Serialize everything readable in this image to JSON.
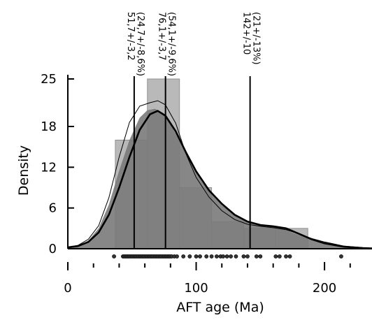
{
  "chart_data": {
    "type": "bar",
    "xlabel": "AFT age (Ma)",
    "ylabel": "Density",
    "xlim": [
      0,
      237
    ],
    "ylim": [
      0,
      25
    ],
    "x_ticks": [
      0,
      100,
      200
    ],
    "y_ticks": [
      0,
      6,
      12,
      18,
      25
    ],
    "histogram": {
      "bin_edges": [
        37,
        62,
        87,
        112,
        137,
        162,
        187
      ],
      "values": [
        16,
        25,
        9,
        4,
        3,
        3
      ]
    },
    "kde_thick": {
      "x": [
        0,
        8,
        16,
        24,
        32,
        40,
        48,
        56,
        64,
        70,
        76,
        84,
        92,
        100,
        110,
        120,
        130,
        140,
        150,
        160,
        170,
        180,
        190,
        200,
        215,
        230,
        237
      ],
      "y": [
        0.2,
        0.4,
        1.0,
        2.4,
        5.0,
        9.0,
        13.5,
        17.5,
        19.8,
        20.3,
        19.6,
        17.3,
        14.2,
        11.4,
        8.6,
        6.6,
        5.0,
        4.0,
        3.5,
        3.3,
        3.0,
        2.2,
        1.4,
        0.8,
        0.3,
        0.1,
        0.05
      ]
    },
    "kde_thin": {
      "x": [
        0,
        8,
        16,
        24,
        32,
        40,
        48,
        56,
        64,
        70,
        76,
        84,
        92,
        100,
        110,
        120,
        130,
        140,
        150,
        160,
        170,
        180,
        190,
        200,
        215,
        230,
        237
      ],
      "y": [
        0.2,
        0.5,
        1.4,
        3.4,
        7.5,
        13.5,
        18.6,
        21.0,
        21.5,
        21.8,
        21.2,
        18.5,
        14.0,
        10.5,
        7.6,
        5.6,
        4.3,
        3.6,
        3.3,
        3.1,
        2.8,
        2.2,
        1.5,
        1.0,
        0.4,
        0.15,
        0.05
      ]
    },
    "kde_fill": {
      "x": [
        0,
        8,
        16,
        24,
        32,
        40,
        48,
        56,
        62,
        68,
        74,
        80,
        88,
        96,
        104,
        112,
        120,
        130,
        140,
        150,
        158,
        166,
        176,
        186,
        196,
        210,
        225,
        237
      ],
      "y": [
        0.2,
        0.4,
        1.2,
        3.0,
        6.5,
        11.5,
        16.0,
        19.3,
        20.4,
        20.6,
        20.0,
        18.3,
        15.6,
        12.6,
        10.0,
        8.0,
        6.4,
        5.0,
        4.1,
        3.6,
        3.4,
        3.0,
        2.3,
        1.6,
        1.0,
        0.5,
        0.15,
        0.05
      ]
    },
    "peaks": [
      {
        "x": 51.7,
        "lines": [
          "51,7+/-3,2",
          "(24,7+/-8,6%)"
        ]
      },
      {
        "x": 76.1,
        "lines": [
          "76,1+/-3,7",
          "(54,1+/-9,6%)"
        ]
      },
      {
        "x": 142,
        "lines": [
          "142+/-10",
          "(21+/-13%)"
        ]
      }
    ],
    "rug": [
      36,
      43,
      44,
      45,
      46,
      47,
      48,
      49,
      50,
      51,
      52,
      53,
      54,
      55,
      56,
      57,
      58,
      59,
      60,
      61,
      62,
      63,
      64,
      65,
      66,
      67,
      68,
      69,
      70,
      71,
      72,
      73,
      74,
      75,
      76,
      77,
      78,
      79,
      80,
      81,
      83,
      85,
      90,
      95,
      100,
      103,
      108,
      112,
      116,
      119,
      121,
      124,
      127,
      131,
      137,
      140,
      147,
      150,
      162,
      165,
      170,
      173,
      213
    ],
    "colors": {
      "bars": "#b9b9b9",
      "bar_stroke": "#909090",
      "kde_fill": "#7a7a7a",
      "lines": "#000000"
    }
  }
}
